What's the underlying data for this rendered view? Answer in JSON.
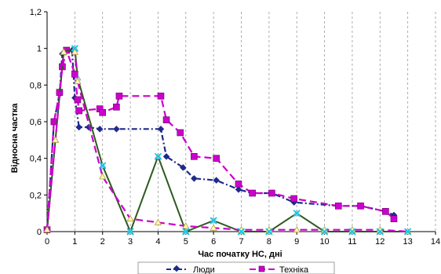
{
  "chart_data": {
    "type": "line",
    "title": "",
    "xlabel": "Час початку НС, дні",
    "ylabel": "Відносна частка",
    "xlim": [
      0,
      14
    ],
    "ylim": [
      0,
      1.2
    ],
    "x_ticks": [
      0,
      1,
      2,
      3,
      4,
      5,
      6,
      7,
      8,
      9,
      10,
      11,
      12,
      13,
      14
    ],
    "y_ticks": [
      0,
      0.2,
      0.4,
      0.6,
      0.8,
      1.0,
      1.2
    ],
    "y_tick_labels": [
      "0",
      "0,2",
      "0,4",
      "0,6",
      "0,8",
      "1",
      "1,2"
    ],
    "grid": "vertical-dashed",
    "legend_position": "bottom",
    "series": [
      {
        "name": "Люди",
        "color": "#1f2a8c",
        "marker": "diamond",
        "line_style": "dash-dot",
        "points": [
          [
            0,
            0.01
          ],
          [
            0.25,
            0.6
          ],
          [
            0.45,
            0.75
          ],
          [
            0.55,
            0.97
          ],
          [
            0.7,
            0.99
          ],
          [
            0.9,
            0.99
          ],
          [
            1.0,
            0.73
          ],
          [
            1.15,
            0.57
          ],
          [
            1.5,
            0.57
          ],
          [
            1.9,
            0.56
          ],
          [
            2.5,
            0.56
          ],
          [
            4.1,
            0.56
          ],
          [
            4.3,
            0.41
          ],
          [
            4.9,
            0.35
          ],
          [
            5.3,
            0.29
          ],
          [
            6.1,
            0.28
          ],
          [
            6.9,
            0.23
          ],
          [
            7.4,
            0.21
          ],
          [
            8.1,
            0.21
          ],
          [
            8.9,
            0.16
          ],
          [
            10.5,
            0.14
          ],
          [
            11.3,
            0.14
          ],
          [
            12.2,
            0.11
          ],
          [
            12.5,
            0.09
          ]
        ]
      },
      {
        "name": "Техніка",
        "color": "#cc00cc",
        "marker": "square",
        "line_style": "long-dash",
        "points": [
          [
            0,
            0.01
          ],
          [
            0.25,
            0.6
          ],
          [
            0.45,
            0.76
          ],
          [
            0.55,
            0.9
          ],
          [
            0.7,
            0.99
          ],
          [
            1.0,
            0.86
          ],
          [
            1.1,
            0.72
          ],
          [
            1.15,
            0.66
          ],
          [
            1.9,
            0.67
          ],
          [
            2.0,
            0.65
          ],
          [
            2.5,
            0.68
          ],
          [
            2.6,
            0.74
          ],
          [
            4.1,
            0.74
          ],
          [
            4.3,
            0.61
          ],
          [
            4.8,
            0.54
          ],
          [
            5.3,
            0.41
          ],
          [
            6.1,
            0.4
          ],
          [
            6.9,
            0.26
          ],
          [
            7.4,
            0.21
          ],
          [
            8.1,
            0.21
          ],
          [
            8.9,
            0.18
          ],
          [
            10.5,
            0.14
          ],
          [
            11.3,
            0.14
          ],
          [
            12.2,
            0.11
          ],
          [
            12.5,
            0.07
          ]
        ]
      },
      {
        "name": "",
        "color": "#2d5a1e",
        "marker": "triangle",
        "line_style": "solid",
        "points": [
          [
            0,
            0.01
          ],
          [
            0.3,
            0.5
          ],
          [
            0.6,
            0.98
          ],
          [
            1.0,
            1.0
          ],
          [
            1.1,
            0.84
          ],
          [
            2.0,
            0.36
          ],
          [
            3.0,
            0.0
          ],
          [
            4.0,
            0.41
          ],
          [
            5.0,
            0.0
          ],
          [
            6.0,
            0.06
          ],
          [
            7.0,
            0.0
          ],
          [
            8.0,
            0.0
          ],
          [
            9.0,
            0.1
          ],
          [
            10.0,
            0.0
          ],
          [
            11.0,
            0.0
          ],
          [
            12.0,
            0.0
          ],
          [
            13.0,
            0.0
          ]
        ]
      },
      {
        "name": "",
        "color": "#cc00cc",
        "marker": "triangle-open",
        "line_style": "long-dash",
        "points": [
          [
            0,
            0.01
          ],
          [
            0.3,
            0.5
          ],
          [
            0.6,
            0.98
          ],
          [
            1.0,
            0.98
          ],
          [
            1.1,
            0.82
          ],
          [
            2.0,
            0.3
          ],
          [
            3.0,
            0.07
          ],
          [
            4.0,
            0.05
          ],
          [
            5.0,
            0.03
          ],
          [
            6.0,
            0.02
          ],
          [
            7.0,
            0.01
          ],
          [
            8.0,
            0.01
          ],
          [
            9.0,
            0.01
          ],
          [
            10.0,
            0.01
          ],
          [
            11.0,
            0.01
          ],
          [
            12.0,
            0.01
          ],
          [
            13.0,
            0.0
          ]
        ]
      },
      {
        "name": "",
        "color": "#00c8e6",
        "marker": "x",
        "line_style": "none",
        "points": [
          [
            1.0,
            1.0
          ],
          [
            2.0,
            0.36
          ],
          [
            3.0,
            0.0
          ],
          [
            4.0,
            0.41
          ],
          [
            5.0,
            0.0
          ],
          [
            6.0,
            0.06
          ],
          [
            7.0,
            0.0
          ],
          [
            8.0,
            0.0
          ],
          [
            9.0,
            0.1
          ],
          [
            10.0,
            0.0
          ],
          [
            11.0,
            0.0
          ],
          [
            12.0,
            0.0
          ],
          [
            13.0,
            0.0
          ]
        ]
      }
    ]
  }
}
